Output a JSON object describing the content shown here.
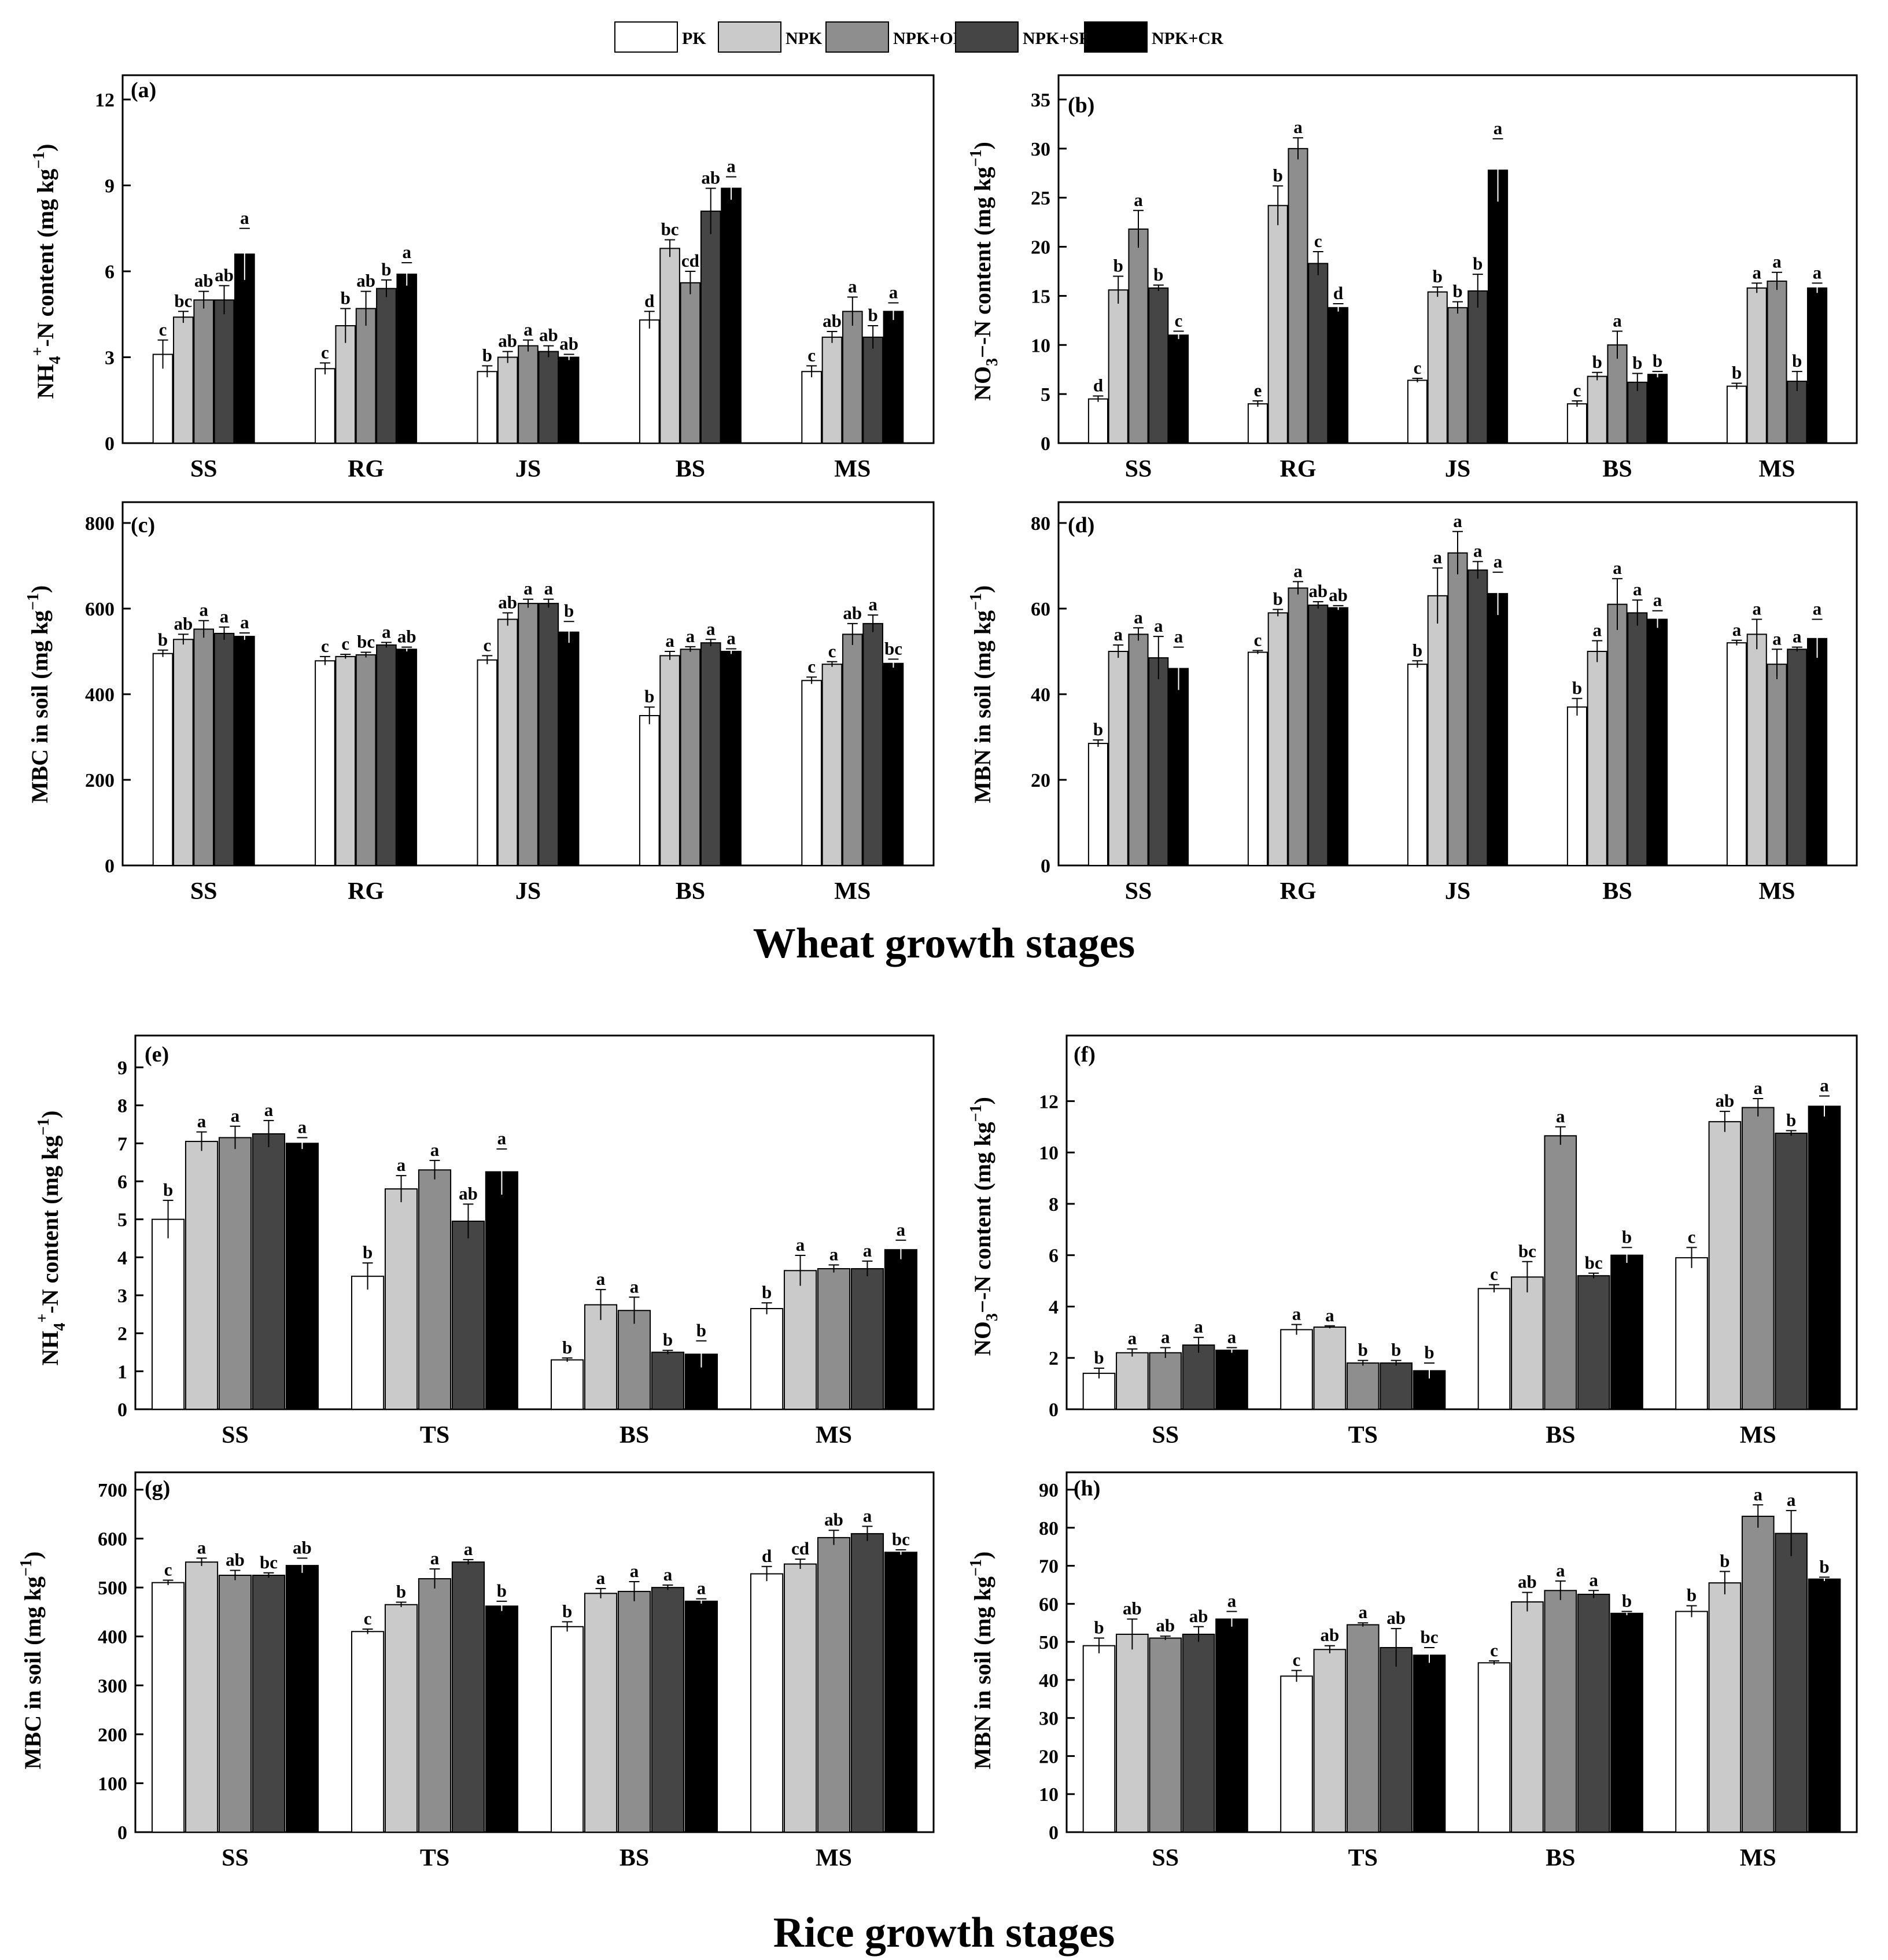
{
  "series": [
    {
      "name": "PK",
      "color": "#ffffff"
    },
    {
      "name": "NPK",
      "color": "#cacaca"
    },
    {
      "name": "NPK+OM",
      "color": "#8e8e8e"
    },
    {
      "name": "NPK+SR",
      "color": "#454545"
    },
    {
      "name": "NPK+CR",
      "color": "#000000"
    }
  ],
  "sections": {
    "wheat_title": "Wheat growth stages",
    "rice_title": "Rice growth stages"
  },
  "chart_data": [
    {
      "id": "a",
      "panel_label": "(a)",
      "type": "bar",
      "ylabel": "NH4+-N content (mg kg-1)",
      "categories": [
        "SS",
        "RG",
        "JS",
        "BS",
        "MS"
      ],
      "ylim": [
        0,
        12
      ],
      "yticks": [
        0,
        3,
        6,
        9,
        12
      ],
      "values": [
        [
          3.1,
          4.4,
          5.0,
          5.0,
          6.6
        ],
        [
          2.6,
          4.1,
          4.7,
          5.4,
          5.9
        ],
        [
          2.5,
          3.0,
          3.4,
          3.2,
          3.0
        ],
        [
          4.3,
          6.8,
          5.6,
          8.1,
          8.9
        ],
        [
          2.5,
          3.7,
          4.6,
          3.7,
          4.6
        ]
      ],
      "errors": [
        [
          0.5,
          0.2,
          0.3,
          0.5,
          0.9
        ],
        [
          0.2,
          0.6,
          0.6,
          0.3,
          0.4
        ],
        [
          0.2,
          0.2,
          0.2,
          0.2,
          0.1
        ],
        [
          0.3,
          0.3,
          0.4,
          0.8,
          0.4
        ],
        [
          0.2,
          0.2,
          0.5,
          0.4,
          0.3
        ]
      ],
      "sig": [
        [
          "c",
          "bc",
          "ab",
          "ab",
          "a"
        ],
        [
          "c",
          "b",
          "ab",
          "b",
          "a"
        ],
        [
          "b",
          "ab",
          "a",
          "ab",
          "ab"
        ],
        [
          "d",
          "bc",
          "cd",
          "ab",
          "a"
        ],
        [
          "c",
          "ab",
          "a",
          "b",
          "a"
        ]
      ]
    },
    {
      "id": "b",
      "panel_label": "(b)",
      "type": "bar",
      "ylabel": "NO3--N content (mg kg-1)",
      "categories": [
        "SS",
        "RG",
        "JS",
        "BS",
        "MS"
      ],
      "ylim": [
        0,
        35
      ],
      "yticks": [
        0,
        5,
        10,
        15,
        20,
        25,
        30,
        35
      ],
      "values": [
        [
          4.5,
          15.6,
          21.8,
          15.8,
          11.0
        ],
        [
          4.0,
          24.2,
          30.0,
          18.3,
          13.8
        ],
        [
          6.4,
          15.4,
          13.8,
          15.5,
          27.8
        ],
        [
          4.0,
          6.8,
          10.0,
          6.2,
          7.0
        ],
        [
          5.8,
          15.8,
          16.5,
          6.3,
          15.8
        ]
      ],
      "errors": [
        [
          0.3,
          1.4,
          1.9,
          0.3,
          0.4
        ],
        [
          0.3,
          2.0,
          1.1,
          1.2,
          0.4
        ],
        [
          0.2,
          0.5,
          0.6,
          1.7,
          3.2
        ],
        [
          0.3,
          0.4,
          1.4,
          0.9,
          0.3
        ],
        [
          0.3,
          0.5,
          0.9,
          1.0,
          0.5
        ]
      ],
      "sig": [
        [
          "d",
          "b",
          "a",
          "b",
          "c"
        ],
        [
          "e",
          "b",
          "a",
          "c",
          "d"
        ],
        [
          "c",
          "b",
          "b",
          "b",
          "a"
        ],
        [
          "c",
          "b",
          "a",
          "b",
          "b"
        ],
        [
          "b",
          "a",
          "a",
          "b",
          "a"
        ]
      ]
    },
    {
      "id": "c",
      "panel_label": "(c)",
      "type": "bar",
      "ylabel": "MBC in soil (mg kg-1)",
      "categories": [
        "SS",
        "RG",
        "JS",
        "BS",
        "MS"
      ],
      "ylim": [
        0,
        800
      ],
      "yticks": [
        0,
        200,
        400,
        600,
        800
      ],
      "values": [
        [
          495,
          528,
          552,
          542,
          535
        ],
        [
          478,
          488,
          492,
          515,
          505
        ],
        [
          480,
          575,
          612,
          612,
          545
        ],
        [
          350,
          490,
          505,
          520,
          500
        ],
        [
          432,
          470,
          540,
          565,
          472
        ]
      ],
      "errors": [
        [
          8,
          12,
          20,
          15,
          8
        ],
        [
          10,
          5,
          6,
          6,
          5
        ],
        [
          10,
          15,
          10,
          10,
          25
        ],
        [
          20,
          10,
          6,
          8,
          6
        ],
        [
          8,
          6,
          25,
          20,
          10
        ]
      ],
      "sig": [
        [
          "b",
          "ab",
          "a",
          "a",
          "a"
        ],
        [
          "c",
          "c",
          "bc",
          "a",
          "ab"
        ],
        [
          "c",
          "ab",
          "a",
          "a",
          "b"
        ],
        [
          "b",
          "a",
          "a",
          "a",
          "a"
        ],
        [
          "c",
          "c",
          "ab",
          "a",
          "bc"
        ]
      ]
    },
    {
      "id": "d",
      "panel_label": "(d)",
      "type": "bar",
      "ylabel": "MBN in soil (mg kg-1)",
      "categories": [
        "SS",
        "RG",
        "JS",
        "BS",
        "MS"
      ],
      "ylim": [
        0,
        80
      ],
      "yticks": [
        0,
        20,
        40,
        60,
        80
      ],
      "values": [
        [
          28.5,
          50.0,
          54.0,
          48.5,
          46.0
        ],
        [
          49.8,
          59.0,
          64.8,
          60.8,
          60.2
        ],
        [
          47.0,
          63.0,
          73.0,
          69.0,
          63.5
        ],
        [
          37.0,
          50.0,
          61.0,
          59.0,
          57.5
        ],
        [
          52.0,
          54.0,
          47.0,
          50.5,
          53.0
        ]
      ],
      "errors": [
        [
          0.8,
          1.5,
          1.5,
          5.0,
          5.0
        ],
        [
          0.4,
          0.8,
          1.5,
          0.8,
          0.5
        ],
        [
          0.8,
          6.5,
          5.0,
          2.0,
          5.0
        ],
        [
          2.0,
          2.5,
          6.0,
          3.0,
          2.0
        ],
        [
          0.6,
          3.5,
          3.5,
          0.5,
          4.5
        ]
      ],
      "sig": [
        [
          "b",
          "a",
          "a",
          "a",
          "a"
        ],
        [
          "c",
          "b",
          "a",
          "ab",
          "ab"
        ],
        [
          "b",
          "a",
          "a",
          "a",
          "a"
        ],
        [
          "b",
          "a",
          "a",
          "a",
          "a"
        ],
        [
          "a",
          "a",
          "a",
          "a",
          "a"
        ]
      ]
    },
    {
      "id": "e",
      "panel_label": "(e)",
      "type": "bar",
      "ylabel": "NH4+-N content (mg kg-1)",
      "categories": [
        "SS",
        "TS",
        "BS",
        "MS"
      ],
      "ylim": [
        0,
        9
      ],
      "yticks": [
        0,
        1,
        2,
        3,
        4,
        5,
        6,
        7,
        8,
        9
      ],
      "values": [
        [
          5.0,
          7.05,
          7.15,
          7.25,
          7.0
        ],
        [
          3.5,
          5.8,
          6.3,
          4.95,
          6.25
        ],
        [
          1.3,
          2.75,
          2.6,
          1.5,
          1.45
        ],
        [
          2.65,
          3.65,
          3.7,
          3.7,
          4.2
        ]
      ],
      "errors": [
        [
          0.5,
          0.25,
          0.3,
          0.35,
          0.15
        ],
        [
          0.35,
          0.35,
          0.25,
          0.45,
          0.6
        ],
        [
          0.05,
          0.4,
          0.35,
          0.05,
          0.35
        ],
        [
          0.15,
          0.4,
          0.1,
          0.2,
          0.25
        ]
      ],
      "sig": [
        [
          "b",
          "a",
          "a",
          "a",
          "a"
        ],
        [
          "b",
          "a",
          "a",
          "ab",
          "a"
        ],
        [
          "b",
          "a",
          "a",
          "b",
          "b"
        ],
        [
          "b",
          "a",
          "a",
          "a",
          "a"
        ]
      ]
    },
    {
      "id": "f",
      "panel_label": "(f)",
      "type": "bar",
      "ylabel": "NO3--N content (mg kg-1)",
      "categories": [
        "SS",
        "TS",
        "BS",
        "MS"
      ],
      "ylim": [
        0,
        13
      ],
      "yticks": [
        0,
        2,
        4,
        6,
        8,
        10,
        12
      ],
      "values": [
        [
          1.4,
          2.2,
          2.2,
          2.5,
          2.3
        ],
        [
          3.1,
          3.2,
          1.8,
          1.8,
          1.5
        ],
        [
          4.7,
          5.15,
          10.65,
          5.2,
          6.0
        ],
        [
          5.9,
          11.2,
          11.75,
          10.75,
          11.8
        ]
      ],
      "errors": [
        [
          0.2,
          0.15,
          0.2,
          0.3,
          0.1
        ],
        [
          0.2,
          0.05,
          0.1,
          0.1,
          0.3
        ],
        [
          0.15,
          0.6,
          0.35,
          0.1,
          0.3
        ],
        [
          0.4,
          0.4,
          0.35,
          0.1,
          0.4
        ]
      ],
      "sig": [
        [
          "b",
          "a",
          "a",
          "a",
          "a"
        ],
        [
          "a",
          "a",
          "b",
          "b",
          "b"
        ],
        [
          "c",
          "bc",
          "a",
          "bc",
          "b"
        ],
        [
          "c",
          "ab",
          "a",
          "b",
          "a"
        ]
      ]
    },
    {
      "id": "g",
      "panel_label": "(g)",
      "type": "bar",
      "ylabel": "MBC in soil (mg kg-1)",
      "categories": [
        "SS",
        "TS",
        "BS",
        "MS"
      ],
      "ylim": [
        0,
        700
      ],
      "yticks": [
        0,
        100,
        200,
        300,
        400,
        500,
        600,
        700
      ],
      "values": [
        [
          510,
          552,
          525,
          525,
          545
        ],
        [
          410,
          465,
          518,
          552,
          462
        ],
        [
          420,
          488,
          492,
          500,
          472
        ],
        [
          528,
          548,
          602,
          610,
          572
        ]
      ],
      "errors": [
        [
          5,
          8,
          10,
          5,
          15
        ],
        [
          5,
          5,
          20,
          5,
          10
        ],
        [
          10,
          10,
          20,
          5,
          5
        ],
        [
          15,
          10,
          15,
          15,
          5
        ]
      ],
      "sig": [
        [
          "c",
          "a",
          "ab",
          "bc",
          "ab"
        ],
        [
          "c",
          "b",
          "a",
          "a",
          "b"
        ],
        [
          "b",
          "a",
          "a",
          "a",
          "a"
        ],
        [
          "d",
          "cd",
          "ab",
          "a",
          "bc"
        ]
      ]
    },
    {
      "id": "h",
      "panel_label": "(h)",
      "type": "bar",
      "ylabel": "MBN in soil (mg kg-1)",
      "categories": [
        "SS",
        "TS",
        "BS",
        "MS"
      ],
      "ylim": [
        0,
        90
      ],
      "yticks": [
        0,
        10,
        20,
        30,
        40,
        50,
        60,
        70,
        80,
        90
      ],
      "values": [
        [
          49,
          52,
          51,
          52,
          56
        ],
        [
          41,
          48,
          54.5,
          48.5,
          46.5
        ],
        [
          44.5,
          60.5,
          63.5,
          62.5,
          57.5
        ],
        [
          58,
          65.5,
          83,
          78.5,
          66.5
        ]
      ],
      "errors": [
        [
          2,
          4,
          0.5,
          2,
          2
        ],
        [
          1.5,
          1,
          0.5,
          5,
          2
        ],
        [
          0.5,
          2.5,
          2.5,
          1,
          0.5
        ],
        [
          1.5,
          3,
          3,
          6,
          0.5
        ]
      ],
      "sig": [
        [
          "b",
          "ab",
          "ab",
          "ab",
          "a"
        ],
        [
          "c",
          "ab",
          "a",
          "ab",
          "bc"
        ],
        [
          "c",
          "ab",
          "a",
          "a",
          "b"
        ],
        [
          "b",
          "b",
          "a",
          "a",
          "b"
        ]
      ]
    }
  ]
}
